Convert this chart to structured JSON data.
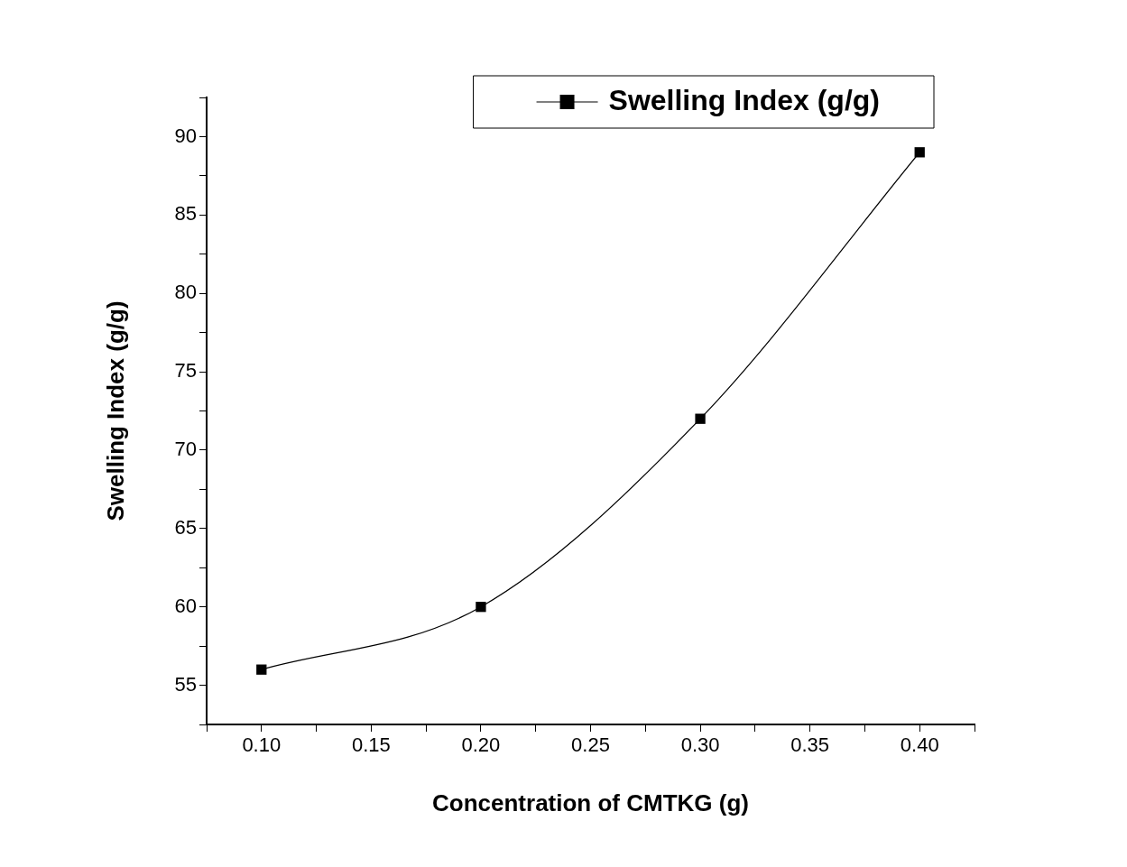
{
  "chart_data": {
    "type": "line",
    "xlabel": "Concentration of CMTKG (g)",
    "ylabel": "Swelling Index (g/g)",
    "x": [
      0.1,
      0.2,
      0.3,
      0.4
    ],
    "series": [
      {
        "name": "Swelling Index (g/g)",
        "color": "#000000",
        "values": [
          56,
          60,
          72,
          89
        ]
      }
    ],
    "xlim": [
      0.075,
      0.425
    ],
    "xticks": [
      {
        "value": 0.075,
        "label": null
      },
      {
        "value": 0.1,
        "label": "0.10"
      },
      {
        "value": 0.125,
        "label": null
      },
      {
        "value": 0.15,
        "label": "0.15"
      },
      {
        "value": 0.175,
        "label": null
      },
      {
        "value": 0.2,
        "label": "0.20"
      },
      {
        "value": 0.225,
        "label": null
      },
      {
        "value": 0.25,
        "label": "0.25"
      },
      {
        "value": 0.275,
        "label": null
      },
      {
        "value": 0.3,
        "label": "0.30"
      },
      {
        "value": 0.325,
        "label": null
      },
      {
        "value": 0.35,
        "label": "0.35"
      },
      {
        "value": 0.375,
        "label": null
      },
      {
        "value": 0.4,
        "label": "0.40"
      },
      {
        "value": 0.425,
        "label": null
      }
    ],
    "ylim": [
      52.5,
      92.5
    ],
    "yticks": [
      {
        "value": 52.5,
        "label": null
      },
      55,
      {
        "value": 57.5,
        "label": null
      },
      60,
      {
        "value": 62.5,
        "label": null
      },
      65,
      {
        "value": 67.5,
        "label": null
      },
      70,
      {
        "value": 72.5,
        "label": null
      },
      75,
      {
        "value": 77.5,
        "label": null
      },
      80,
      {
        "value": 82.5,
        "label": null
      },
      85,
      {
        "value": 87.5,
        "label": null
      },
      90,
      {
        "value": 92.5,
        "label": null
      }
    ],
    "grid": false,
    "legend": "top right",
    "marker": "square",
    "line_style": "solid"
  }
}
